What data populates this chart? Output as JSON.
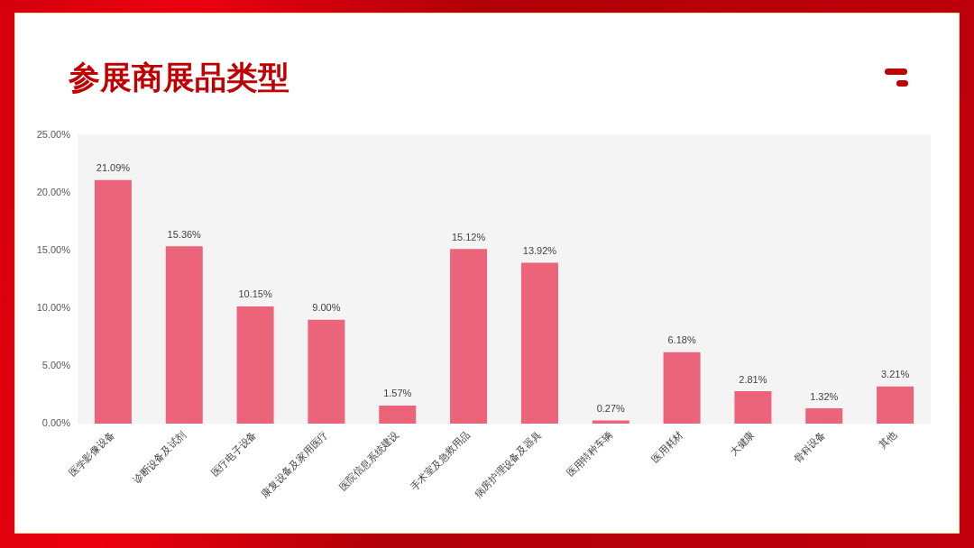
{
  "chart_data": {
    "type": "bar",
    "title": "参展商展品类型",
    "categories": [
      "医学影像设备",
      "诊断设备及试剂",
      "医疗电子设备",
      "康复设备及家用医疗",
      "医院信息系统建设",
      "手术室及急救用品",
      "病房护理设备及器具",
      "医用特种车辆",
      "医用耗材",
      "大健康",
      "骨科设备",
      "其他"
    ],
    "values": [
      21.09,
      15.36,
      10.15,
      9.0,
      1.57,
      15.12,
      13.92,
      0.27,
      6.18,
      2.81,
      1.32,
      3.21
    ],
    "value_labels": [
      "21.09%",
      "15.36%",
      "10.15%",
      "9.00%",
      "1.57%",
      "15.12%",
      "13.92%",
      "0.27%",
      "6.18%",
      "2.81%",
      "1.32%",
      "3.21%"
    ],
    "color": "#ec6479",
    "ylim": [
      0,
      25
    ],
    "yticks": [
      {
        "value": 0,
        "label": "0.00%"
      },
      {
        "value": 5,
        "label": "5.00%"
      },
      {
        "value": 10,
        "label": "10.00%"
      },
      {
        "value": 15,
        "label": "15.00%"
      },
      {
        "value": 20,
        "label": "20.00%"
      },
      {
        "value": 25,
        "label": "25.00%"
      }
    ]
  }
}
